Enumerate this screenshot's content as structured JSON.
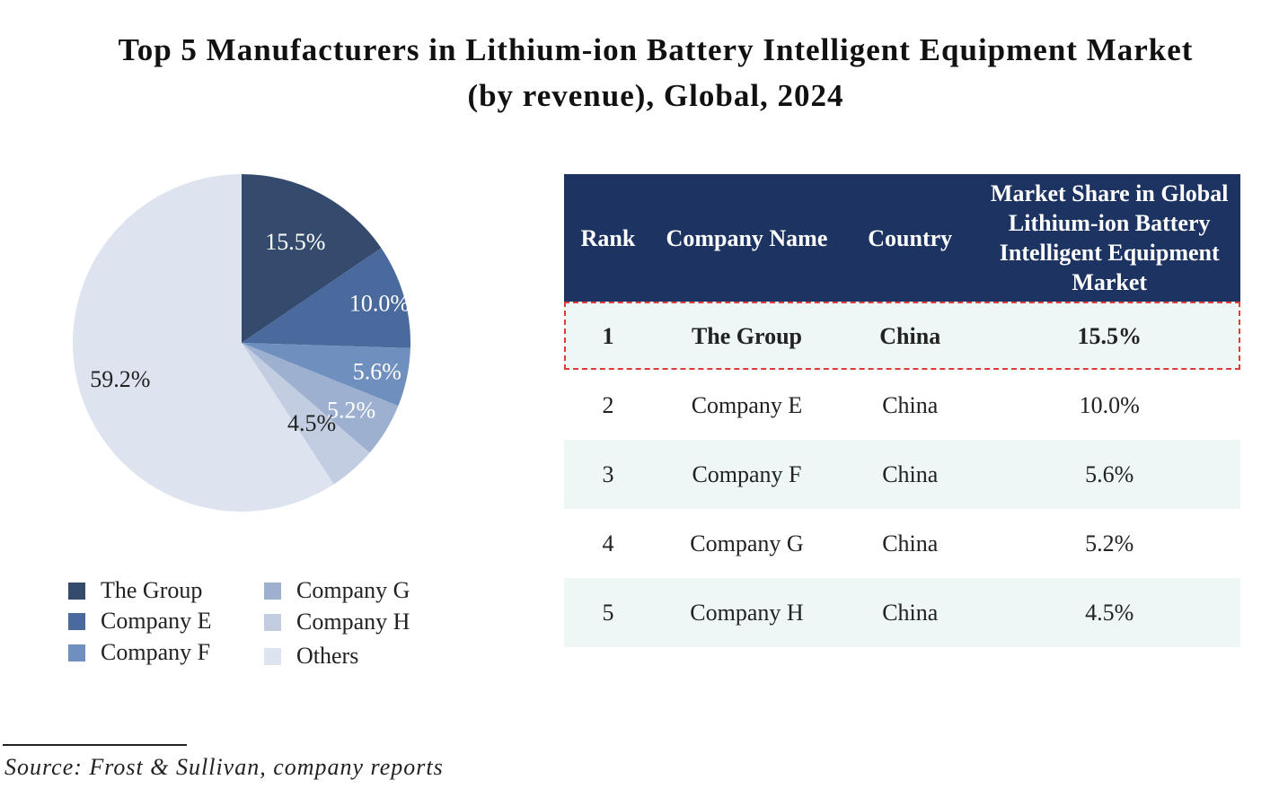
{
  "chart_data": {
    "type": "pie",
    "title_line1": "Top 5 Manufacturers in Lithium-ion Battery Intelligent Equipment Market",
    "title_line2": "(by revenue), Global, 2024",
    "slices": [
      {
        "name": "The Group",
        "value": 15.5,
        "label": "15.5%",
        "color": "#344b6e"
      },
      {
        "name": "Company E",
        "value": 10.0,
        "label": "10.0%",
        "color": "#4a6a9e"
      },
      {
        "name": "Company F",
        "value": 5.6,
        "label": "5.6%",
        "color": "#6f8fbe"
      },
      {
        "name": "Company G",
        "value": 5.2,
        "label": "5.2%",
        "color": "#9db0d0"
      },
      {
        "name": "Company H",
        "value": 4.5,
        "label": "4.5%",
        "color": "#c2cde2"
      },
      {
        "name": "Others",
        "value": 59.2,
        "label": "59.2%",
        "color": "#dde4f0"
      }
    ],
    "legend": [
      "The Group",
      "Company E",
      "Company F",
      "Company G",
      "Company H",
      "Others"
    ]
  },
  "table": {
    "headers": [
      "Rank",
      "Company Name",
      "Country",
      "Market Share in Global Lithium-ion Battery Intelligent Equipment Market"
    ],
    "rows": [
      [
        "1",
        "The Group",
        "China",
        "15.5%"
      ],
      [
        "2",
        "Company E",
        "China",
        "10.0%"
      ],
      [
        "3",
        "Company F",
        "China",
        "5.6%"
      ],
      [
        "4",
        "Company G",
        "China",
        "5.2%"
      ],
      [
        "5",
        "Company H",
        "China",
        "4.5%"
      ]
    ],
    "header_color": "#1d3463",
    "highlight_color": "#e03b3b"
  },
  "source": "Source: Frost & Sullivan, company reports"
}
